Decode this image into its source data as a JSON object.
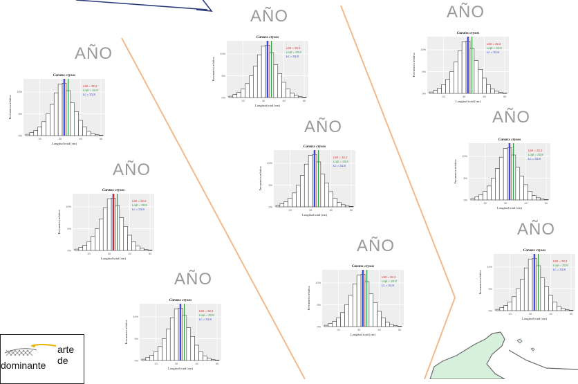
{
  "chart_data": {
    "type": "bar",
    "layout": "small multiples (10 identical histogram panels)",
    "panel_title": "Caranx crysos",
    "panel_label": "AÑO",
    "xlabel": "Longitud total (cm)",
    "ylabel": "Frecuencia relativa",
    "x_ticks": [
      "20",
      "30",
      "40",
      "50"
    ],
    "y_ticks": [
      "0%",
      "5%",
      "10%"
    ],
    "xlim": [
      12,
      52
    ],
    "ylim": [
      0,
      13
    ],
    "bins": [
      {
        "x": 14,
        "value": 0.3
      },
      {
        "x": 16,
        "value": 0.7
      },
      {
        "x": 18,
        "value": 1.2
      },
      {
        "x": 20,
        "value": 2.0
      },
      {
        "x": 22,
        "value": 3.2
      },
      {
        "x": 24,
        "value": 5.0
      },
      {
        "x": 26,
        "value": 7.2
      },
      {
        "x": 28,
        "value": 9.8
      },
      {
        "x": 30,
        "value": 11.8
      },
      {
        "x": 32,
        "value": 12.0
      },
      {
        "x": 34,
        "value": 10.3
      },
      {
        "x": 36,
        "value": 7.5
      },
      {
        "x": 38,
        "value": 5.5
      },
      {
        "x": 40,
        "value": 3.5
      },
      {
        "x": 42,
        "value": 2.0
      },
      {
        "x": 44,
        "value": 1.0
      },
      {
        "x": 46,
        "value": 0.5
      },
      {
        "x": 48,
        "value": 0.2
      },
      {
        "x": 50,
        "value": 0.1
      }
    ],
    "vlines": [
      {
        "x": 32.2,
        "color": "#e4312b",
        "label": "L50 = 32.2"
      },
      {
        "x": 33.9,
        "color": "#2f9e44",
        "label": "Lopt = 33.9"
      },
      {
        "x": 31.8,
        "color": "#2a3fd1",
        "label": "Lc = 31.8"
      }
    ],
    "bar_color": "#ffffff",
    "bar_stroke": "#333333"
  },
  "legend": {
    "line1": "arte de",
    "line2": "dominante"
  },
  "colors": {
    "arrow": "#2b3a7a",
    "divider": "#f2b98a",
    "year_label": "#9a9a9a",
    "map_land": "#d6f0dc",
    "map_stroke": "#6a6a6a"
  }
}
